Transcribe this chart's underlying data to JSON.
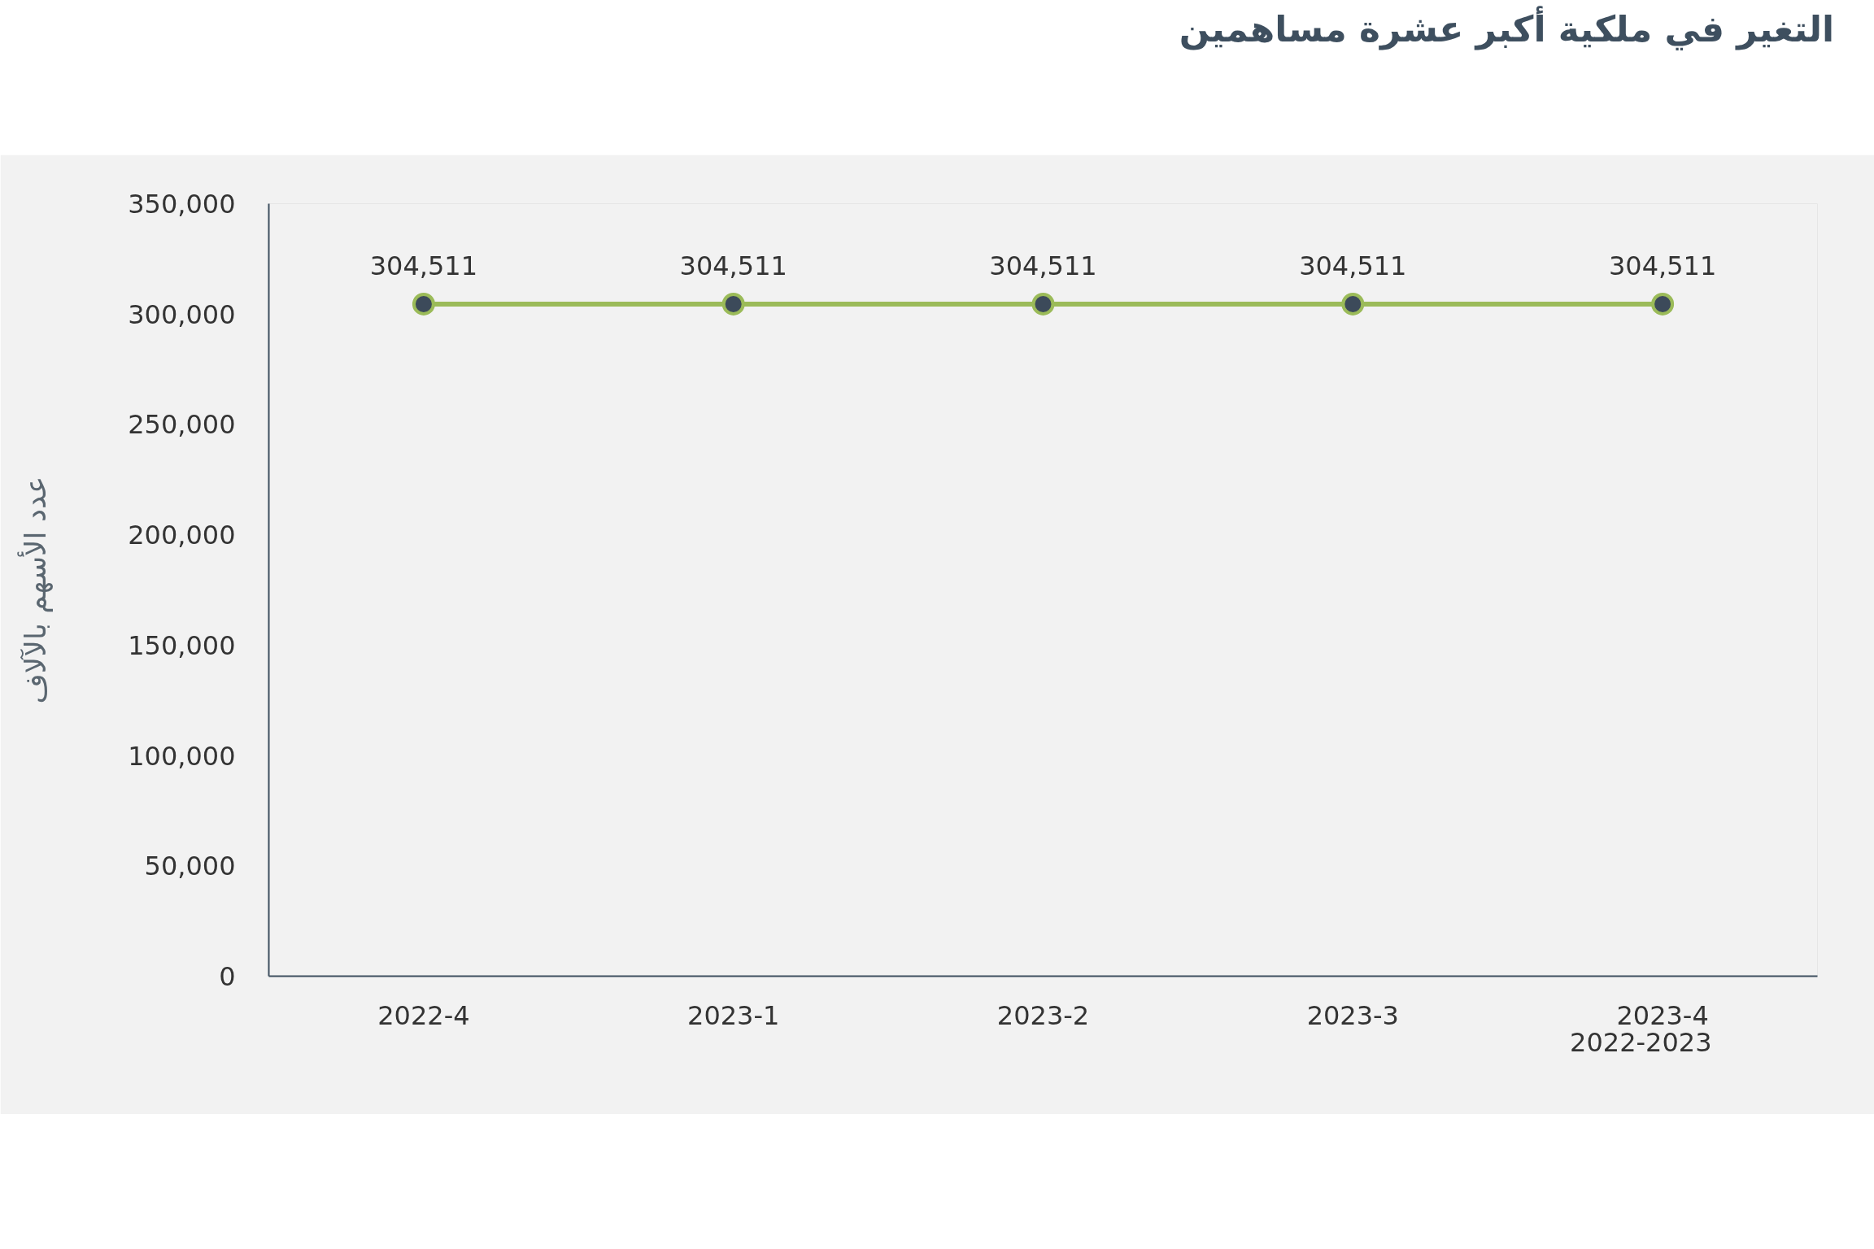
{
  "chart_data": {
    "type": "line",
    "title": "التغير في ملكية أكبر عشرة مساهمين",
    "ylabel": "عدد الأسهم بالآلاف",
    "xlabel": "2022-2023",
    "categories": [
      "2022-4",
      "2023-1",
      "2023-2",
      "2023-3",
      "2023-4"
    ],
    "series": [
      {
        "color": "#9bbb59",
        "values": [
          304511,
          304511,
          304511,
          304511,
          304511
        ]
      }
    ],
    "ylim": [
      0,
      350000
    ],
    "yticks": [
      0,
      {
        "value": 50000,
        "label": "50,000"
      },
      {
        "value": 100000,
        "label": "100,000"
      },
      {
        "value": 150000,
        "label": "150,000"
      },
      {
        "value": 200000,
        "label": "200,000"
      },
      {
        "value": 250000,
        "label": "250,000"
      },
      {
        "value": 300000,
        "label": "300,000"
      },
      {
        "value": 350000,
        "label": "350,000"
      }
    ],
    "value_labels": [
      "304,511",
      "304,511",
      "304,511",
      "304,511",
      "304,511"
    ],
    "marker": "circle",
    "line_style": "solid",
    "grid": false
  }
}
